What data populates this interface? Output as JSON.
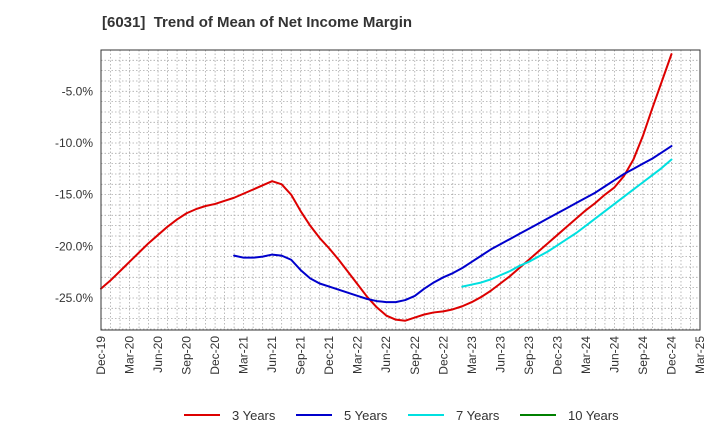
{
  "chart_data": {
    "type": "line",
    "title": "[6031]  Trend of Mean of Net Income Margin",
    "xlabel": "",
    "ylabel": "",
    "ylim": [
      -28.1,
      -1.0
    ],
    "y_ticks": [
      -5.0,
      -10.0,
      -15.0,
      -20.0,
      -25.0
    ],
    "y_tick_labels": [
      "-5.0%",
      "-10.0%",
      "-15.0%",
      "-20.0%",
      "-25.0%"
    ],
    "x_tick_labels": [
      "Dec-19",
      "Mar-20",
      "Jun-20",
      "Sep-20",
      "Dec-20",
      "Mar-21",
      "Jun-21",
      "Sep-21",
      "Dec-21",
      "Mar-22",
      "Jun-22",
      "Sep-22",
      "Dec-22",
      "Mar-23",
      "Jun-23",
      "Sep-23",
      "Dec-23",
      "Mar-24",
      "Jun-24",
      "Sep-24",
      "Dec-24",
      "Mar-25"
    ],
    "grid": true,
    "legend_position": "bottom",
    "series": [
      {
        "name": "3 Years",
        "color": "#dd0000",
        "x": [
          "Dec-19",
          "Jan-20",
          "Feb-20",
          "Mar-20",
          "Apr-20",
          "May-20",
          "Jun-20",
          "Jul-20",
          "Aug-20",
          "Sep-20",
          "Oct-20",
          "Nov-20",
          "Dec-20",
          "Jan-21",
          "Feb-21",
          "Mar-21",
          "Apr-21",
          "May-21",
          "Jun-21",
          "Jul-21",
          "Aug-21",
          "Sep-21",
          "Oct-21",
          "Nov-21",
          "Dec-21",
          "Jan-22",
          "Feb-22",
          "Mar-22",
          "Apr-22",
          "May-22",
          "Jun-22",
          "Jul-22",
          "Aug-22",
          "Sep-22",
          "Oct-22",
          "Nov-22",
          "Dec-22",
          "Jan-23",
          "Feb-23",
          "Mar-23",
          "Apr-23",
          "May-23",
          "Jun-23",
          "Jul-23",
          "Aug-23",
          "Sep-23",
          "Oct-23",
          "Nov-23",
          "Dec-23",
          "Jan-24",
          "Feb-24",
          "Mar-24",
          "Apr-24",
          "May-24",
          "Jun-24",
          "Jul-24",
          "Aug-24",
          "Sep-24",
          "Oct-24",
          "Nov-24",
          "Dec-24"
        ],
        "values": [
          -24.1,
          -23.3,
          -22.4,
          -21.5,
          -20.6,
          -19.7,
          -18.9,
          -18.1,
          -17.4,
          -16.8,
          -16.4,
          -16.1,
          -15.9,
          -15.6,
          -15.3,
          -14.9,
          -14.5,
          -14.1,
          -13.7,
          -14.0,
          -15.0,
          -16.6,
          -18.0,
          -19.2,
          -20.2,
          -21.3,
          -22.5,
          -23.7,
          -24.9,
          -25.9,
          -26.7,
          -27.1,
          -27.2,
          -26.9,
          -26.6,
          -26.4,
          -26.3,
          -26.1,
          -25.8,
          -25.4,
          -24.9,
          -24.3,
          -23.6,
          -22.9,
          -22.1,
          -21.3,
          -20.5,
          -19.7,
          -18.9,
          -18.1,
          -17.3,
          -16.5,
          -15.8,
          -15.0,
          -14.3,
          -13.2,
          -11.6,
          -9.3,
          -6.6,
          -4.0,
          -1.4
        ]
      },
      {
        "name": "5 Years",
        "color": "#0000cc",
        "x": [
          "Feb-21",
          "Mar-21",
          "Apr-21",
          "May-21",
          "Jun-21",
          "Jul-21",
          "Aug-21",
          "Sep-21",
          "Oct-21",
          "Nov-21",
          "Dec-21",
          "Jan-22",
          "Feb-22",
          "Mar-22",
          "Apr-22",
          "May-22",
          "Jun-22",
          "Jul-22",
          "Aug-22",
          "Sep-22",
          "Oct-22",
          "Nov-22",
          "Dec-22",
          "Jan-23",
          "Feb-23",
          "Mar-23",
          "Apr-23",
          "May-23",
          "Jun-23",
          "Jul-23",
          "Aug-23",
          "Sep-23",
          "Oct-23",
          "Nov-23",
          "Dec-23",
          "Jan-24",
          "Feb-24",
          "Mar-24",
          "Apr-24",
          "May-24",
          "Jun-24",
          "Jul-24",
          "Aug-24",
          "Sep-24",
          "Oct-24",
          "Nov-24",
          "Dec-24"
        ],
        "values": [
          -20.9,
          -21.1,
          -21.1,
          -21.0,
          -20.8,
          -20.9,
          -21.3,
          -22.3,
          -23.1,
          -23.6,
          -23.9,
          -24.2,
          -24.5,
          -24.8,
          -25.1,
          -25.3,
          -25.4,
          -25.4,
          -25.2,
          -24.8,
          -24.1,
          -23.5,
          -23.0,
          -22.6,
          -22.1,
          -21.5,
          -20.9,
          -20.3,
          -19.8,
          -19.3,
          -18.8,
          -18.3,
          -17.8,
          -17.3,
          -16.8,
          -16.3,
          -15.8,
          -15.3,
          -14.8,
          -14.2,
          -13.6,
          -13.0,
          -12.5,
          -12.0,
          -11.5,
          -10.9,
          -10.3
        ]
      },
      {
        "name": "7 Years",
        "color": "#00e0e0",
        "x": [
          "Feb-23",
          "Mar-23",
          "Apr-23",
          "May-23",
          "Jun-23",
          "Jul-23",
          "Aug-23",
          "Sep-23",
          "Oct-23",
          "Nov-23",
          "Dec-23",
          "Jan-24",
          "Feb-24",
          "Mar-24",
          "Apr-24",
          "May-24",
          "Jun-24",
          "Jul-24",
          "Aug-24",
          "Sep-24",
          "Oct-24",
          "Nov-24",
          "Dec-24"
        ],
        "values": [
          -23.9,
          -23.7,
          -23.5,
          -23.2,
          -22.8,
          -22.4,
          -21.9,
          -21.5,
          -21.0,
          -20.5,
          -19.9,
          -19.3,
          -18.7,
          -18.0,
          -17.3,
          -16.6,
          -15.9,
          -15.2,
          -14.5,
          -13.8,
          -13.1,
          -12.4,
          -11.6
        ]
      },
      {
        "name": "10 Years",
        "color": "#008000",
        "x": [],
        "values": []
      }
    ]
  }
}
